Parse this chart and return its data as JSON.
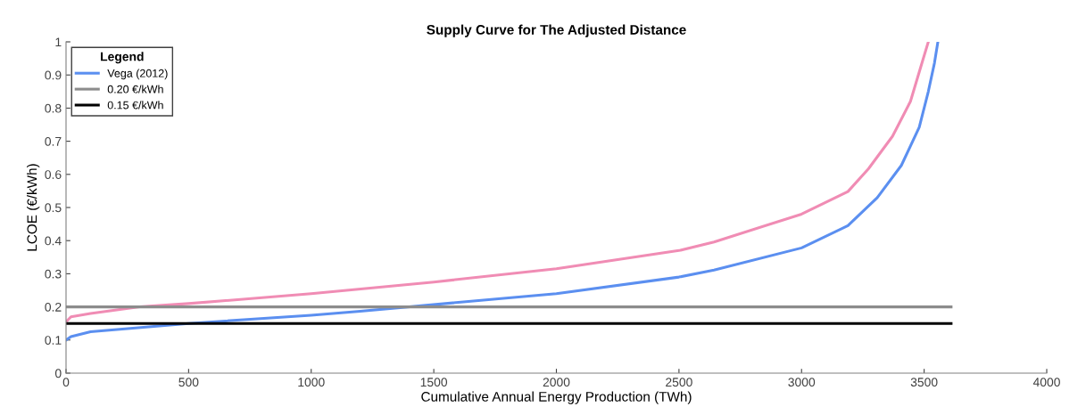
{
  "chart_data": {
    "type": "line",
    "title": "Supply Curve for The Adjusted Distance",
    "xlabel": "Cumulative Annual Energy Production (TWh)",
    "ylabel": "LCOE (€/kWh)",
    "legend_title": "Legend",
    "xlim": [
      0,
      4000
    ],
    "xticks": [
      0,
      500,
      1000,
      1500,
      2000,
      2500,
      3000,
      3500,
      4000
    ],
    "ylim": [
      0,
      1
    ],
    "yticks": [
      0,
      0.1,
      0.2,
      0.3,
      0.4,
      0.5,
      0.6,
      0.7,
      0.8,
      0.9,
      1
    ],
    "grid": false,
    "legend": "top left",
    "series": [
      {
        "color": "#f08cb4",
        "x": [
          0,
          20,
          100,
          300,
          500,
          1000,
          1500,
          2000,
          2500,
          2643,
          3000,
          3189,
          3273,
          3371,
          3444,
          3491,
          3517
        ],
        "values": [
          0.155,
          0.17,
          0.18,
          0.2,
          0.21,
          0.24,
          0.275,
          0.315,
          0.37,
          0.396,
          0.48,
          0.548,
          0.617,
          0.715,
          0.82,
          0.936,
          1.0
        ]
      },
      {
        "name": "Vega (2012)",
        "color": "#5b8ff0",
        "x": [
          0,
          20,
          100,
          500,
          1000,
          1200,
          2000,
          2500,
          2643,
          3000,
          3189,
          3309,
          3407,
          3480,
          3517,
          3542,
          3556
        ],
        "values": [
          0.1,
          0.11,
          0.125,
          0.15,
          0.175,
          0.187,
          0.24,
          0.29,
          0.311,
          0.378,
          0.445,
          0.53,
          0.627,
          0.742,
          0.85,
          0.936,
          1.0
        ]
      },
      {
        "name": "0.20 €/kWh",
        "color": "#8c8c8c",
        "x": [
          0,
          3610
        ],
        "values": [
          0.2,
          0.2
        ]
      },
      {
        "name": "0.15 €/kWh",
        "color": "#000000",
        "x": [
          0,
          3610
        ],
        "values": [
          0.15,
          0.15
        ]
      }
    ]
  }
}
